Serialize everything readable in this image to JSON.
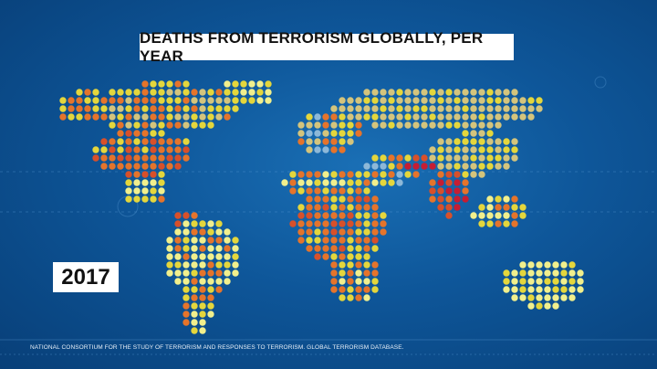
{
  "header": {
    "title": "DEATHS FROM TERRORISM GLOBALLY, PER YEAR"
  },
  "year": "2017",
  "source": "NATIONAL CONSORTIUM FOR THE STUDY OF TERRORISM AND RESPONSES TO TERRORISM. GLOBAL TERRORISM DATABASE."
}
